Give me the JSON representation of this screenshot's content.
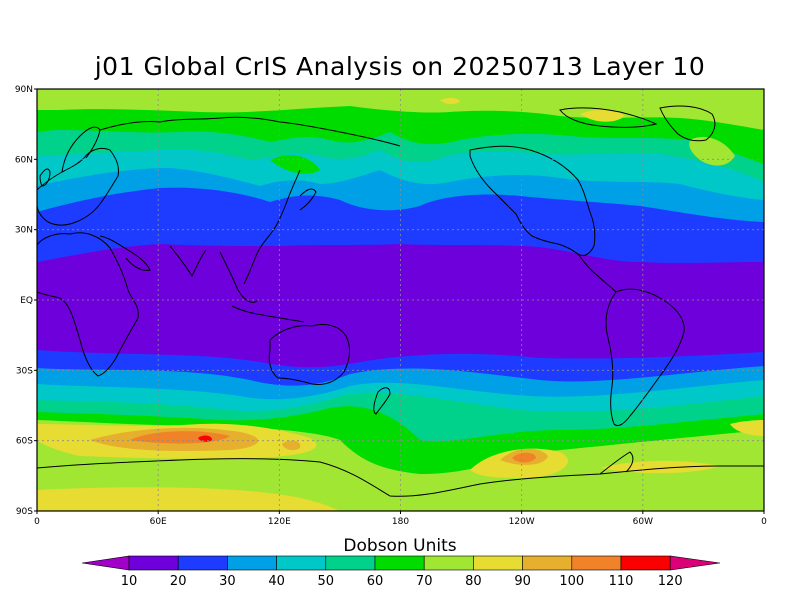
{
  "title": "j01 Global CrIS Analysis on 20250713 Layer 10",
  "map": {
    "projection": "cylindrical equidistant",
    "lat_ticks": [
      {
        "value": 90,
        "label": "90N"
      },
      {
        "value": 60,
        "label": "60N"
      },
      {
        "value": 30,
        "label": "30N"
      },
      {
        "value": 0,
        "label": "EQ"
      },
      {
        "value": -30,
        "label": "30S"
      },
      {
        "value": -60,
        "label": "60S"
      },
      {
        "value": -90,
        "label": "90S"
      }
    ],
    "lon_ticks": [
      {
        "value": 0,
        "label": "0"
      },
      {
        "value": 60,
        "label": "60E"
      },
      {
        "value": 120,
        "label": "120E"
      },
      {
        "value": 180,
        "label": "180"
      },
      {
        "value": 240,
        "label": "120W"
      },
      {
        "value": 300,
        "label": "60W"
      },
      {
        "value": 360,
        "label": "0"
      }
    ],
    "grid_lines": true
  },
  "colorbar": {
    "title": "Dobson Units",
    "levels": [
      "10",
      "20",
      "30",
      "40",
      "50",
      "60",
      "70",
      "80",
      "90",
      "100",
      "110",
      "120"
    ],
    "colors": [
      "#a000c8",
      "#6e00dc",
      "#1e3cff",
      "#00a0e6",
      "#00c8c8",
      "#00d28c",
      "#00dc00",
      "#a0e632",
      "#e6dc32",
      "#e6af2d",
      "#f08228",
      "#fa0000",
      "#dc0078"
    ]
  },
  "field_colors": {
    "c20": "#6e00dc",
    "c30": "#1e3cff",
    "c40": "#00a0e6",
    "c50": "#00c8c8",
    "c60": "#00d28c",
    "c70": "#00dc00",
    "c80": "#a0e632",
    "c90": "#e6dc32",
    "c100": "#e6af2d",
    "c110": "#f08228",
    "c120": "#fa0000"
  }
}
